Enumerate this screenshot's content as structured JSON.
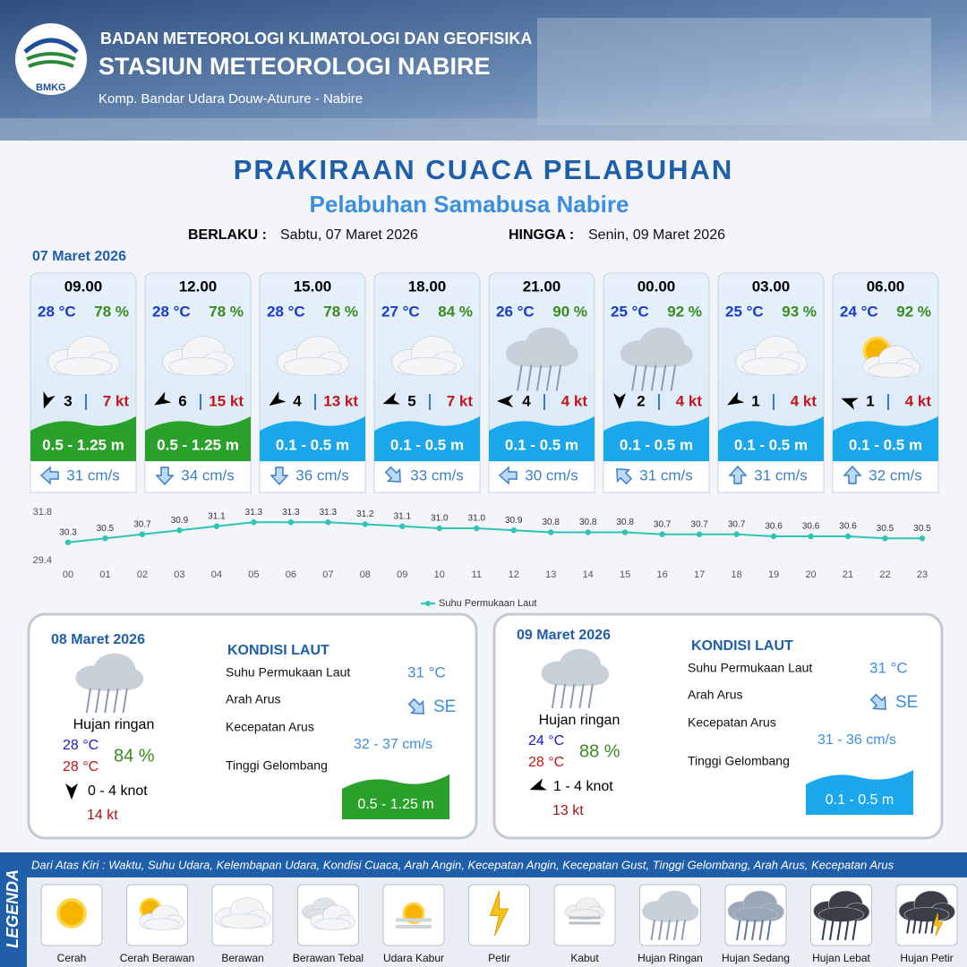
{
  "header": {
    "logo": "BMKG",
    "agency": "BADAN METEOROLOGI KLIMATOLOGI DAN GEOFISIKA",
    "station": "STASIUN METEOROLOGI NABIRE",
    "address": "Komp. Bandar Udara Douw-Aturure - Nabire"
  },
  "title": "PRAKIRAAN CUACA PELABUHAN",
  "subtitle": "Pelabuhan Samabusa Nabire",
  "validity": {
    "from_label": "BERLAKU :",
    "from": "Sabtu, 07 Maret 2026",
    "to_label": "HINGGA :",
    "to": "Senin, 09 Maret 2026"
  },
  "day1": {
    "date": "07 Maret 2026",
    "forecasts": [
      {
        "time": "09.00",
        "temp": "28 °C",
        "humidity": "78 %",
        "wind": 3,
        "gust": "7 kt",
        "wave": "0.5 - 1.25 m",
        "current": "31 cm/s"
      },
      {
        "time": "12.00",
        "temp": "28 °C",
        "humidity": "78 %",
        "wind": 6,
        "gust": "15 kt",
        "wave": "0.5 - 1.25 m",
        "current": "34 cm/s"
      },
      {
        "time": "15.00",
        "temp": "28 °C",
        "humidity": "78 %",
        "wind": 4,
        "gust": "13 kt",
        "wave": "0.1 - 0.5 m",
        "current": "36 cm/s"
      },
      {
        "time": "18.00",
        "temp": "27 °C",
        "humidity": "84 %",
        "wind": 5,
        "gust": "7 kt",
        "wave": "0.1 - 0.5 m",
        "current": "33 cm/s"
      },
      {
        "time": "21.00",
        "temp": "26 °C",
        "humidity": "90 %",
        "wind": 4,
        "gust": "4 kt",
        "wave": "0.1 - 0.5 m",
        "current": "30 cm/s"
      },
      {
        "time": "00.00",
        "temp": "25 °C",
        "humidity": "92 %",
        "wind": 2,
        "gust": "4 kt",
        "wave": "0.1 - 0.5 m",
        "current": "31 cm/s"
      },
      {
        "time": "03.00",
        "temp": "25 °C",
        "humidity": "93 %",
        "wind": 1,
        "gust": "4 kt",
        "wave": "0.1 - 0.5 m",
        "current": "31 cm/s"
      },
      {
        "time": "06.00",
        "temp": "24 °C",
        "humidity": "92 %",
        "wind": 1,
        "gust": "4 kt",
        "wave": "0.1 - 0.5 m",
        "current": "32 cm/s"
      }
    ]
  },
  "chart_data": {
    "type": "line",
    "categories": [
      "00",
      "01",
      "02",
      "03",
      "04",
      "05",
      "06",
      "07",
      "08",
      "09",
      "10",
      "11",
      "12",
      "13",
      "14",
      "15",
      "16",
      "17",
      "18",
      "19",
      "20",
      "21",
      "22",
      "23"
    ],
    "series": [
      {
        "name": "Suhu Permukaan Laut",
        "color": "#2ec4b6",
        "values": [
          30.3,
          30.5,
          30.7,
          30.9,
          31.1,
          31.3,
          31.3,
          31.3,
          31.2,
          31.1,
          31.0,
          31.0,
          30.9,
          30.8,
          30.8,
          30.8,
          30.7,
          30.7,
          30.7,
          30.6,
          30.6,
          30.6,
          30.5,
          30.5
        ],
        "value_labels": [
          "30.3",
          "30.5",
          "30.7",
          "30.9",
          "31.1",
          "31.3",
          "31.3",
          "31.3",
          "31.2",
          "31.1",
          "31.0",
          "31.0",
          "30.9",
          "30.8",
          "30.8",
          "30.8",
          "30.7",
          "30.7",
          "30.7",
          "30.6",
          "30.6",
          "30.6",
          "30.5",
          "30.5"
        ]
      }
    ],
    "ylim": [
      29.4,
      31.8
    ],
    "yticks": [
      29.4,
      31.8
    ],
    "legend": "bottom"
  },
  "days": [
    {
      "date": "08 Maret 2026",
      "condition": "Hujan ringan",
      "temp_min": "28 °C",
      "temp_max": "28 °C",
      "humidity": "84 %",
      "wind": "0  - 4 knot",
      "gust": "14 kt",
      "sea_title": "KONDISI LAUT",
      "sst_label": "Suhu Permukaan Laut",
      "sst": "31 °C",
      "current_dir_label": "Arah Arus",
      "current_dir": "SE",
      "current_speed_label": "Kecepatan Arus",
      "current_speed": "32 - 37 cm/s",
      "wave_label": "Tinggi Gelombang",
      "wave": "0.5 - 1.25 m"
    },
    {
      "date": "09 Maret 2026",
      "condition": "Hujan ringan",
      "temp_min": "24 °C",
      "temp_max": "28 °C",
      "humidity": "88 %",
      "wind": "1  - 4 knot",
      "gust": "13 kt",
      "sea_title": "KONDISI LAUT",
      "sst_label": "Suhu Permukaan Laut",
      "sst": "31 °C",
      "current_dir_label": "Arah Arus",
      "current_dir": "SE",
      "current_speed_label": "Kecepatan Arus",
      "current_speed": "31 - 36 cm/s",
      "wave_label": "Tinggi Gelombang",
      "wave": "0.1 - 0.5 m"
    }
  ],
  "legend": {
    "title": "LEGENDA",
    "description": "Dari Atas Kiri : Waktu, Suhu Udara, Kelembapan Udara, Kondisi Cuaca, Arah Angin, Kecepatan Angin, Kecepatan Gust, Tinggi Gelombang, Arah Arus, Kecepatan Arus",
    "items": [
      "Cerah",
      "Cerah Berawan",
      "Berawan",
      "Berawan Tebal",
      "Udara Kabur",
      "Petir",
      "Kabut",
      "Hujan Ringan",
      "Hujan Sedang",
      "Hujan Lebat",
      "Hujan Petir"
    ]
  }
}
